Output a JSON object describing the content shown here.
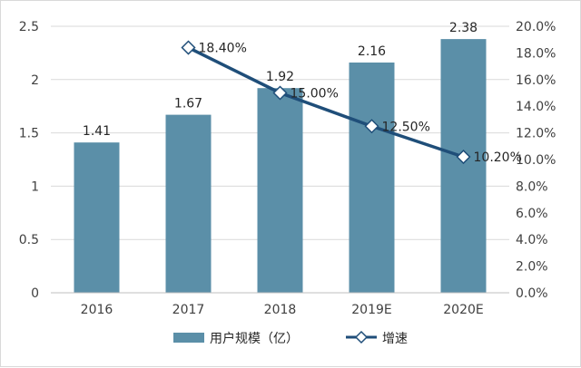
{
  "chart_data": {
    "type": "bar",
    "categories": [
      "2016",
      "2017",
      "2018",
      "2019E",
      "2020E"
    ],
    "series": [
      {
        "name": "用户规模（亿）",
        "type": "bar",
        "axis": "left",
        "values": [
          1.41,
          1.67,
          1.92,
          2.16,
          2.38
        ],
        "labels": [
          "1.41",
          "1.67",
          "1.92",
          "2.16",
          "2.38"
        ]
      },
      {
        "name": "增速",
        "type": "line",
        "axis": "right",
        "x": [
          "2017",
          "2018",
          "2019E",
          "2020E"
        ],
        "values": [
          18.4,
          15.0,
          12.5,
          10.2
        ],
        "labels": [
          "18.40%",
          "15.00%",
          "12.50%",
          "10.20%"
        ]
      }
    ],
    "y_left": {
      "ylim": [
        0,
        2.5
      ],
      "ticks": [
        "0",
        "0.5",
        "1",
        "1.5",
        "2",
        "2.5"
      ]
    },
    "y_right": {
      "ylim": [
        0,
        20
      ],
      "ticks": [
        "0.0%",
        "2.0%",
        "4.0%",
        "6.0%",
        "8.0%",
        "10.0%",
        "12.0%",
        "14.0%",
        "16.0%",
        "18.0%",
        "20.0%"
      ]
    },
    "grid": true,
    "legend_position": "bottom",
    "colors": {
      "bar": "#5b8fa8",
      "line": "#1f4e79",
      "marker_fill": "#ffffff",
      "grid": "#d9d9d9"
    }
  }
}
